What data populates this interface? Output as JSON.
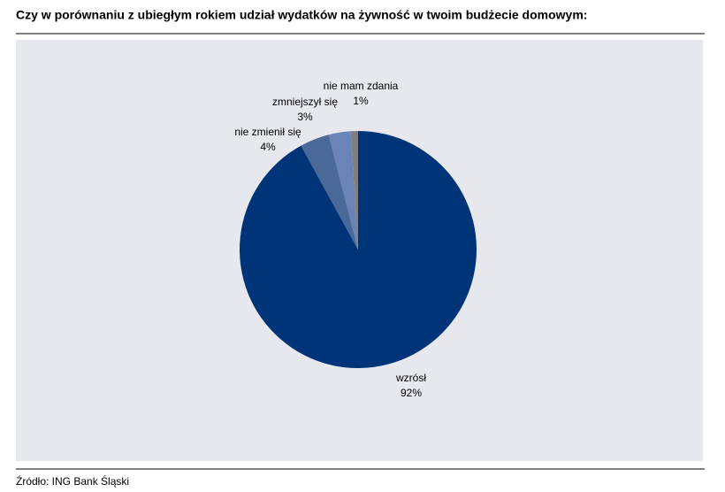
{
  "chart_data": {
    "type": "pie",
    "title": "Czy w porównaniu z ubiegłym rokiem udział wydatków na żywność w twoim budżecie domowym:",
    "categories": [
      "wzrósł",
      "nie zmienił się",
      "zmniejszył się",
      "nie mam zdania"
    ],
    "values": [
      92,
      4,
      3,
      1
    ],
    "value_labels": [
      "92%",
      "4%",
      "3%",
      "1%"
    ],
    "colors": [
      "#003478",
      "#4a6898",
      "#6a84b8",
      "#808080"
    ],
    "source": "Źródło: ING Bank Śląski"
  }
}
